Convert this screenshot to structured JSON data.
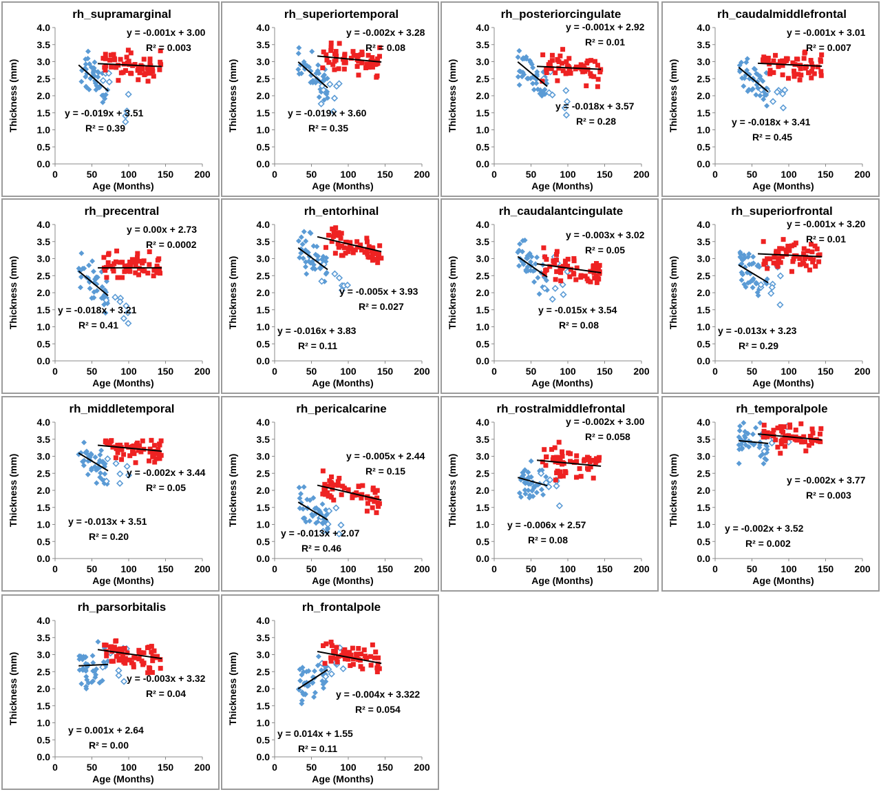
{
  "chart_data": [
    {
      "type": "scatter",
      "title": "rh_supramarginal",
      "xlabel": "Age (Months)",
      "ylabel": "Thickness (mm)",
      "xlim": [
        0,
        200
      ],
      "ylim": [
        0,
        4.0
      ],
      "xticks": [
        "0",
        "50",
        "100",
        "150",
        "200"
      ],
      "yticks": [
        "0.0",
        "0.5",
        "1.0",
        "1.5",
        "2.0",
        "2.5",
        "3.0",
        "3.5",
        "4.0"
      ],
      "younger": {
        "slope": -0.019,
        "intercept": 3.51,
        "equation": "y = -0.019x + 3.51",
        "r2": "R² = 0.39"
      },
      "older": {
        "slope": -0.001,
        "intercept": 3.0,
        "equation": "y = -0.001x + 3.00",
        "r2": "R² = 0.003"
      }
    },
    {
      "type": "scatter",
      "title": "rh_superiortemporal",
      "xlabel": "Age (Months)",
      "ylabel": "Thickness (mm)",
      "xlim": [
        0,
        200
      ],
      "ylim": [
        0,
        4.0
      ],
      "xticks": [
        "0",
        "50",
        "100",
        "150",
        "200"
      ],
      "yticks": [
        "0.0",
        "0.5",
        "1.0",
        "1.5",
        "2.0",
        "2.5",
        "3.0",
        "3.5",
        "4.0"
      ],
      "younger": {
        "slope": -0.019,
        "intercept": 3.6,
        "equation": "y = -0.019x + 3.60",
        "r2": "R² = 0.35"
      },
      "older": {
        "slope": -0.002,
        "intercept": 3.28,
        "equation": "y = -0.002x + 3.28",
        "r2": "R² = 0.08"
      }
    },
    {
      "type": "scatter",
      "title": "rh_posteriorcingulate",
      "xlabel": "Age (Months)",
      "ylabel": "Thickness (mm)",
      "xlim": [
        0,
        200
      ],
      "ylim": [
        0,
        4.0
      ],
      "xticks": [
        "0",
        "50",
        "100",
        "150",
        "200"
      ],
      "yticks": [
        "0.0",
        "0.5",
        "1.0",
        "1.5",
        "2.0",
        "2.5",
        "3.0",
        "3.5",
        "4.0"
      ],
      "younger": {
        "slope": -0.018,
        "intercept": 3.57,
        "equation": "y = -0.018x + 3.57",
        "r2": "R² = 0.28"
      },
      "older": {
        "slope": -0.001,
        "intercept": 2.92,
        "equation": "y = -0.001x + 2.92",
        "r2": "R² = 0.01"
      }
    },
    {
      "type": "scatter",
      "title": "rh_caudalmiddlefrontal",
      "xlabel": "Age (Months)",
      "ylabel": "Thickness (mm)",
      "xlim": [
        0,
        200
      ],
      "ylim": [
        0,
        4.0
      ],
      "xticks": [
        "0",
        "50",
        "100",
        "150",
        "200"
      ],
      "yticks": [
        "0.0",
        "0.5",
        "1.0",
        "1.5",
        "2.0",
        "2.5",
        "3.0",
        "3.5",
        "4.0"
      ],
      "younger": {
        "slope": -0.018,
        "intercept": 3.41,
        "equation": "y = -0.018x + 3.41",
        "r2": "R² = 0.45"
      },
      "older": {
        "slope": -0.001,
        "intercept": 3.01,
        "equation": "y = -0.001x + 3.01",
        "r2": "R² = 0.007"
      }
    },
    {
      "type": "scatter",
      "title": "rh_precentral",
      "xlabel": "Age (Months)",
      "ylabel": "Thickness (mm)",
      "xlim": [
        0,
        200
      ],
      "ylim": [
        0,
        4.0
      ],
      "xticks": [
        "0",
        "50",
        "100",
        "150",
        "200"
      ],
      "yticks": [
        "0.0",
        "0.5",
        "1.0",
        "1.5",
        "2.0",
        "2.5",
        "3.0",
        "3.5",
        "4.0"
      ],
      "younger": {
        "slope": -0.018,
        "intercept": 3.21,
        "equation": "y = -0.018x + 3.21",
        "r2": "R² = 0.41"
      },
      "older": {
        "slope": 0.0,
        "intercept": 2.73,
        "equation": "y = 0.00x + 2.73",
        "r2": "R² = 0.0002"
      }
    },
    {
      "type": "scatter",
      "title": "rh_entorhinal",
      "xlabel": "Age (Months)",
      "ylabel": "Thickness (mm)",
      "xlim": [
        0,
        200
      ],
      "ylim": [
        0,
        4.0
      ],
      "xticks": [
        "0",
        "50",
        "100",
        "150",
        "200"
      ],
      "yticks": [
        "0.0",
        "0.5",
        "1.0",
        "1.5",
        "2.0",
        "2.5",
        "3.0",
        "3.5",
        "4.0"
      ],
      "younger": {
        "slope": -0.016,
        "intercept": 3.83,
        "equation": "y = -0.016x + 3.83",
        "r2": "R² = 0.11"
      },
      "older": {
        "slope": -0.005,
        "intercept": 3.93,
        "equation": "y = -0.005x + 3.93",
        "r2": "R² = 0.027"
      }
    },
    {
      "type": "scatter",
      "title": "rh_caudalantcingulate",
      "xlabel": "Age (Months)",
      "ylabel": "Thickness (mm)",
      "xlim": [
        0,
        200
      ],
      "ylim": [
        0,
        4.0
      ],
      "xticks": [
        "0",
        "50",
        "100",
        "150",
        "200"
      ],
      "yticks": [
        "0.0",
        "0.5",
        "1.0",
        "1.5",
        "2.0",
        "2.5",
        "3.0",
        "3.5",
        "4.0"
      ],
      "younger": {
        "slope": -0.015,
        "intercept": 3.54,
        "equation": "y = -0.015x + 3.54",
        "r2": "R² = 0.08"
      },
      "older": {
        "slope": -0.003,
        "intercept": 3.02,
        "equation": "y = -0.003x + 3.02",
        "r2": "R² = 0.05"
      }
    },
    {
      "type": "scatter",
      "title": "rh_superiorfrontal",
      "xlabel": "Age (Months)",
      "ylabel": "Thickness (mm)",
      "xlim": [
        0,
        200
      ],
      "ylim": [
        0,
        4.0
      ],
      "xticks": [
        "0",
        "50",
        "100",
        "150",
        "200"
      ],
      "yticks": [
        "0.0",
        "0.5",
        "1.0",
        "1.5",
        "2.0",
        "2.5",
        "3.0",
        "3.5",
        "4.0"
      ],
      "younger": {
        "slope": -0.013,
        "intercept": 3.23,
        "equation": "y = -0.013x + 3.23",
        "r2": "R² = 0.29"
      },
      "older": {
        "slope": -0.001,
        "intercept": 3.2,
        "equation": "y = -0.001x + 3.20",
        "r2": "R² = 0.01"
      }
    },
    {
      "type": "scatter",
      "title": "rh_middletemporal",
      "xlabel": "Age (Months)",
      "ylabel": "Thickness (mm)",
      "xlim": [
        0,
        200
      ],
      "ylim": [
        0,
        4.0
      ],
      "xticks": [
        "0",
        "50",
        "100",
        "150",
        "200"
      ],
      "yticks": [
        "0.0",
        "0.5",
        "1.0",
        "1.5",
        "2.0",
        "2.5",
        "3.0",
        "3.5",
        "4.0"
      ],
      "younger": {
        "slope": -0.013,
        "intercept": 3.51,
        "equation": "y = -0.013x + 3.51",
        "r2": "R² = 0.20"
      },
      "older": {
        "slope": -0.002,
        "intercept": 3.44,
        "equation": "y = -0.002x + 3.44",
        "r2": "R² = 0.05"
      }
    },
    {
      "type": "scatter",
      "title": "rh_pericalcarine",
      "xlabel": "Age (Months)",
      "ylabel": "Thickness (mm)",
      "xlim": [
        0,
        200
      ],
      "ylim": [
        0,
        4.0
      ],
      "xticks": [
        "0",
        "50",
        "100",
        "150",
        "200"
      ],
      "yticks": [
        "0.0",
        "0.5",
        "1.0",
        "1.5",
        "2.0",
        "2.5",
        "3.0",
        "3.5",
        "4.0"
      ],
      "younger": {
        "slope": -0.013,
        "intercept": 2.07,
        "equation": "y = -0.013x + 2.07",
        "r2": "R² = 0.46"
      },
      "older": {
        "slope": -0.005,
        "intercept": 2.44,
        "equation": "y = -0.005x + 2.44",
        "r2": "R² = 0.15"
      }
    },
    {
      "type": "scatter",
      "title": "rh_rostralmiddlefrontal",
      "xlabel": "Age (Months)",
      "ylabel": "Thickness (mm)",
      "xlim": [
        0,
        200
      ],
      "ylim": [
        0,
        4.0
      ],
      "xticks": [
        "0",
        "50",
        "100",
        "150",
        "200"
      ],
      "yticks": [
        "0.0",
        "0.5",
        "1.0",
        "1.5",
        "2.0",
        "2.5",
        "3.0",
        "3.5",
        "4.0"
      ],
      "younger": {
        "slope": -0.006,
        "intercept": 2.57,
        "equation": "y = -0.006x + 2.57",
        "r2": "R² = 0.08"
      },
      "older": {
        "slope": -0.002,
        "intercept": 3.0,
        "equation": "y = -0.002x + 3.00",
        "r2": "R² = 0.058"
      }
    },
    {
      "type": "scatter",
      "title": "rh_temporalpole",
      "xlabel": "Age (Months)",
      "ylabel": "Thickness (mm)",
      "xlim": [
        0,
        200
      ],
      "ylim": [
        0,
        4.0
      ],
      "xticks": [
        "0",
        "50",
        "100",
        "150",
        "200"
      ],
      "yticks": [
        "0.0",
        "0.5",
        "1.0",
        "1.5",
        "2.0",
        "2.5",
        "3.0",
        "3.5",
        "4.0"
      ],
      "younger": {
        "slope": -0.002,
        "intercept": 3.52,
        "equation": "y = -0.002x + 3.52",
        "r2": "R² = 0.002"
      },
      "older": {
        "slope": -0.002,
        "intercept": 3.77,
        "equation": "y = -0.002x + 3.77",
        "r2": "R² = 0.003"
      }
    },
    {
      "type": "scatter",
      "title": "rh_parsorbitalis",
      "xlabel": "Age (Months)",
      "ylabel": "Thickness (mm)",
      "xlim": [
        0,
        200
      ],
      "ylim": [
        0,
        4.0
      ],
      "xticks": [
        "0",
        "50",
        "100",
        "150",
        "200"
      ],
      "yticks": [
        "0.0",
        "0.5",
        "1.0",
        "1.5",
        "2.0",
        "2.5",
        "3.0",
        "3.5",
        "4.0"
      ],
      "younger": {
        "slope": 0.001,
        "intercept": 2.64,
        "equation": "y = 0.001x + 2.64",
        "r2": "R² = 0.00"
      },
      "older": {
        "slope": -0.003,
        "intercept": 3.32,
        "equation": "y = -0.003x + 3.32",
        "r2": "R² = 0.04"
      }
    },
    {
      "type": "scatter",
      "title": "rh_frontalpole",
      "xlabel": "Age (Months)",
      "ylabel": "Thickness (mm)",
      "xlim": [
        0,
        200
      ],
      "ylim": [
        0,
        4.0
      ],
      "xticks": [
        "0",
        "50",
        "100",
        "150",
        "200"
      ],
      "yticks": [
        "0.0",
        "0.5",
        "1.0",
        "1.5",
        "2.0",
        "2.5",
        "3.0",
        "3.5",
        "4.0"
      ],
      "younger": {
        "slope": 0.014,
        "intercept": 1.55,
        "equation": "y = 0.014x + 1.55",
        "r2": "R² = 0.11"
      },
      "older": {
        "slope": -0.004,
        "intercept": 3.322,
        "equation": "y = -0.004x + 3.322",
        "r2": "R² = 0.054"
      }
    }
  ],
  "colors": {
    "younger_marker": "#5b9bd5",
    "older_marker": "#ee2222",
    "trendline": "#000000",
    "panel_border": "#9a9a9a"
  }
}
